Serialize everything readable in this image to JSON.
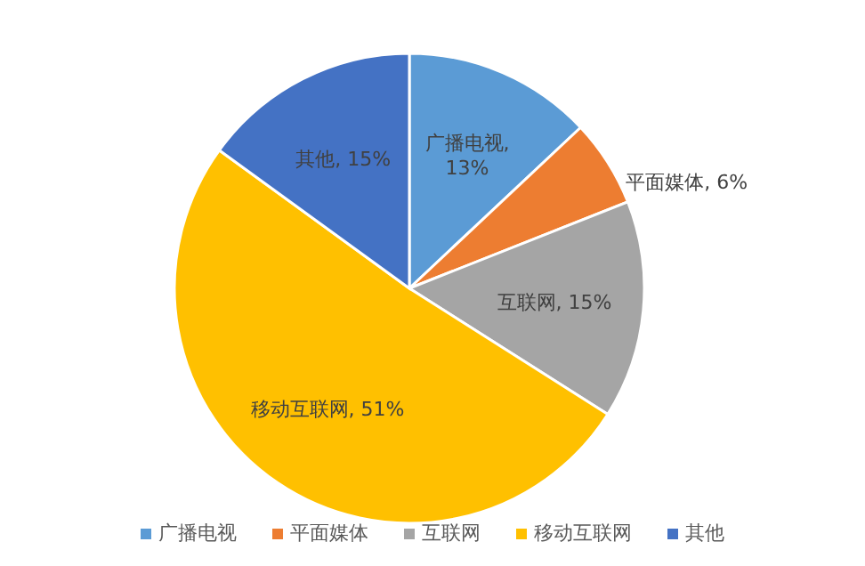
{
  "chart_data": {
    "type": "pie",
    "categories": [
      "广播电视",
      "平面媒体",
      "互联网",
      "移动互联网",
      "其他"
    ],
    "values": [
      13,
      6,
      15,
      51,
      15
    ],
    "colors": [
      "#5b9bd5",
      "#ed7d31",
      "#a5a5a5",
      "#ffc000",
      "#4472c4"
    ],
    "value_labels": [
      "广播电视, 13%",
      "平面媒体, 6%",
      "互联网, 15%",
      "移动互联网, 51%",
      "其他, 15%"
    ],
    "legend": "bottom"
  }
}
